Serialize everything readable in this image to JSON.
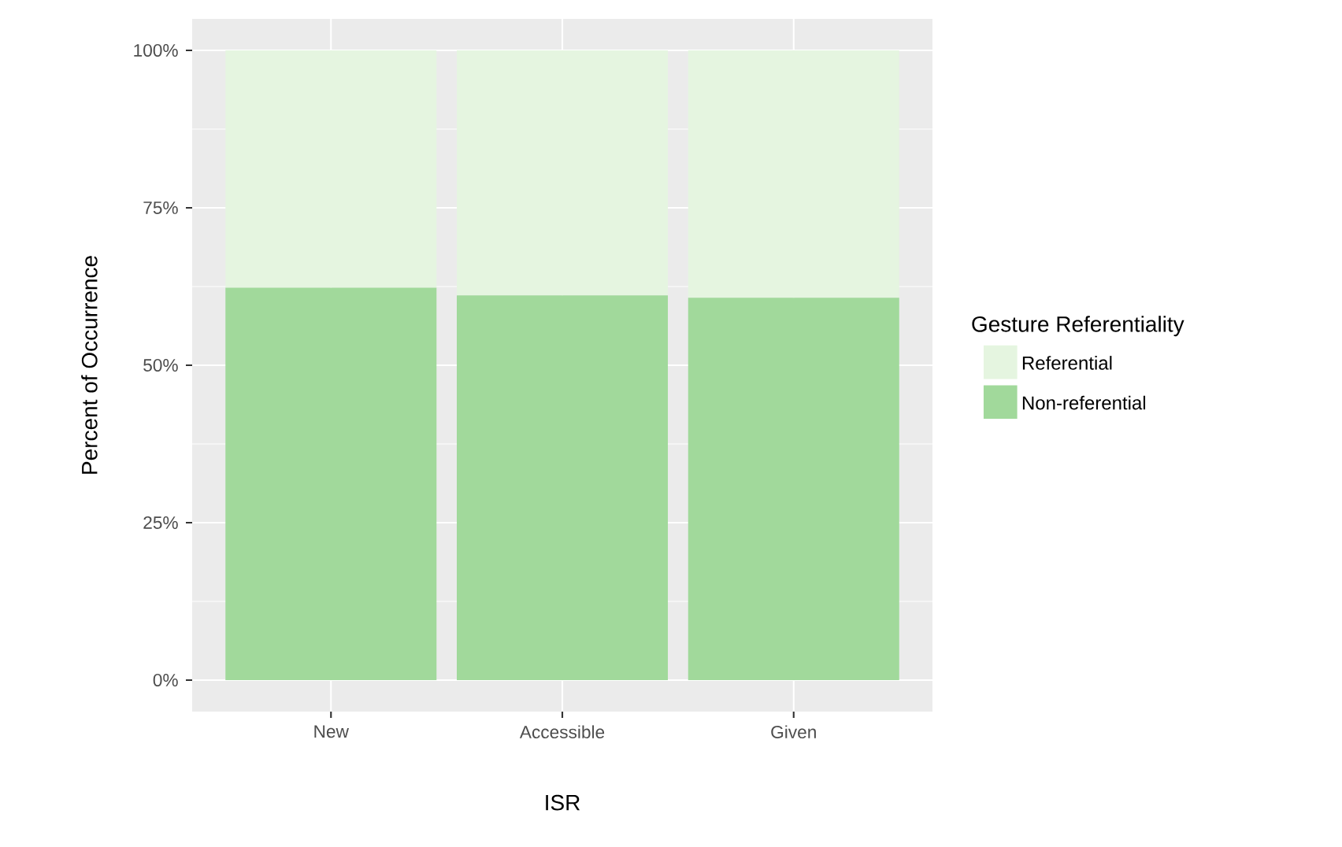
{
  "chart_data": {
    "type": "bar",
    "stacked": true,
    "xlabel": "ISR",
    "ylabel": "Percent of Occurrence",
    "legend_title": "Gesture Referentiality",
    "categories": [
      "New",
      "Accessible",
      "Given"
    ],
    "series": [
      {
        "name": "Non-referential",
        "color": "#a1d99b",
        "values": [
          62.3,
          61.1,
          60.7
        ]
      },
      {
        "name": "Referential",
        "color": "#e5f5e0",
        "values": [
          37.7,
          38.9,
          39.3
        ]
      }
    ],
    "ylim": [
      -5,
      105
    ],
    "yticks": [
      {
        "value": 0,
        "label": "0%"
      },
      {
        "value": 25,
        "label": "25%"
      },
      {
        "value": 50,
        "label": "50%"
      },
      {
        "value": 75,
        "label": "75%"
      },
      {
        "value": 100,
        "label": "100%"
      }
    ],
    "grid": true,
    "legend": "right"
  }
}
